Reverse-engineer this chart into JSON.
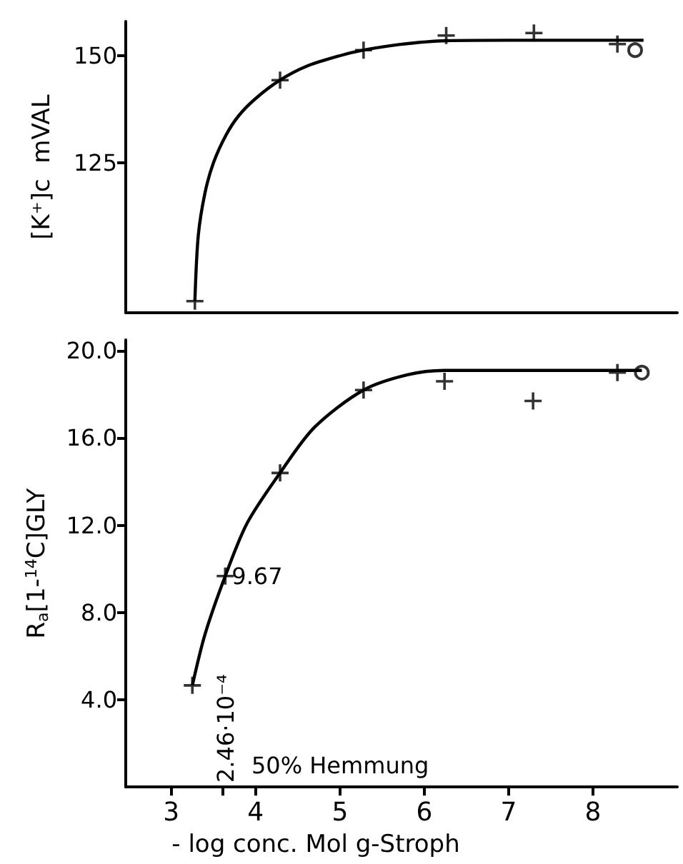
{
  "chart_data": [
    {
      "type": "scatter",
      "ylabel": "[K⁺]c  mVAL",
      "xlim": [
        2.46,
        9.0
      ],
      "ylim": [
        90,
        158
      ],
      "yticks": [
        125,
        150
      ],
      "tick_labels": "y",
      "grid": false,
      "series": [
        {
          "type": "line",
          "color": "#000000",
          "marker": "none",
          "x": [
            3.28,
            3.32,
            3.4,
            3.5,
            3.65,
            3.8,
            4.0,
            4.29,
            4.6,
            5.0,
            5.28,
            5.7,
            6.26,
            7.0,
            8.6
          ],
          "values": [
            92.7,
            108,
            118,
            125,
            131.5,
            136,
            140,
            144.3,
            147.5,
            150,
            151.3,
            152.6,
            153.5,
            153.6,
            153.6
          ]
        },
        {
          "color": "#000000",
          "marker": "cross",
          "x": [
            3.28,
            4.29,
            5.28,
            6.26,
            7.3,
            8.29
          ],
          "values": [
            92.7,
            144.3,
            151.3,
            154.7,
            155.3,
            152.7
          ]
        },
        {
          "color": "#000000",
          "marker": "circle",
          "x": [
            8.5
          ],
          "values": [
            151.3
          ]
        }
      ]
    },
    {
      "type": "scatter",
      "xlabel": "- log conc. Mol g-Stroph",
      "ylabel": "R$_{a}$[1-$^{14}$C]GLY",
      "xlim": [
        2.46,
        9.0
      ],
      "ylim": [
        0,
        20.5
      ],
      "xticks": [
        3,
        {
          "value": 3.61,
          "label": null
        },
        4,
        5,
        6,
        7,
        8
      ],
      "yticks": [
        {
          "value": 4,
          "label": "4.0"
        },
        {
          "value": 8,
          "label": "8.0"
        },
        {
          "value": 12,
          "label": "12.0"
        },
        {
          "value": 16,
          "label": "16.0"
        },
        {
          "value": 20,
          "label": "20.0"
        }
      ],
      "grid": false,
      "annotations": [
        {
          "text": "9.67",
          "x": 3.64,
          "y": 9.67
        },
        "2.46·10⁻⁴",
        "50% Hemmung"
      ],
      "series": [
        {
          "type": "line",
          "color": "#000000",
          "marker": "none",
          "x": [
            3.25,
            3.4,
            3.64,
            3.9,
            4.29,
            4.7,
            5.28,
            5.8,
            6.24,
            7.0,
            8.58
          ],
          "values": [
            4.66,
            7.0,
            9.67,
            12.1,
            14.4,
            16.5,
            18.2,
            18.9,
            19.1,
            19.1,
            19.1
          ]
        },
        {
          "color": "#000000",
          "marker": "cross",
          "x": [
            3.25,
            3.64,
            4.29,
            5.28,
            6.24,
            7.29,
            8.29
          ],
          "values": [
            4.66,
            9.67,
            14.4,
            18.2,
            18.6,
            17.7,
            19.0
          ]
        },
        {
          "color": "#000000",
          "marker": "circle",
          "x": [
            8.58
          ],
          "values": [
            19.0
          ]
        }
      ]
    }
  ]
}
